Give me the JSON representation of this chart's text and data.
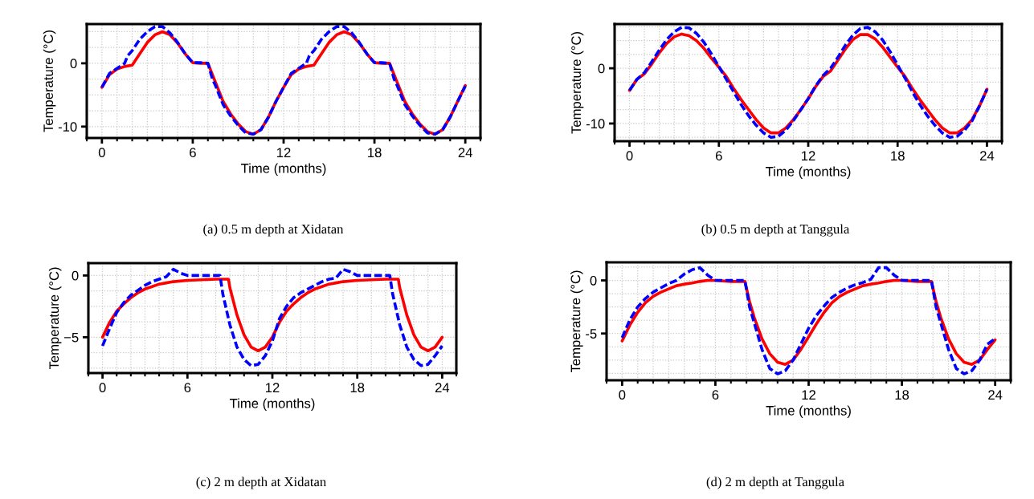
{
  "chart_data": [
    {
      "type": "line",
      "xlabel": "Time (months)",
      "ylabel": "Temperature (°C)",
      "xlim": [
        -1,
        25
      ],
      "xticks": [
        0,
        6,
        12,
        18,
        24
      ],
      "ylim": [
        -11.8,
        6.2
      ],
      "yticks": [
        -10,
        0
      ],
      "grid": true,
      "annotations": [
        "(a) 0.5 m depth at Xidatan"
      ],
      "series": [
        {
          "color": "#ff0000",
          "line_style": "solid",
          "x": [
            0,
            0.5,
            1,
            1.5,
            2,
            2.5,
            3,
            3.5,
            4,
            4.5,
            5,
            5.5,
            6,
            6.5,
            7,
            7.5,
            8,
            8.5,
            9,
            9.5,
            10,
            10.5,
            11,
            11.5,
            12,
            12.5,
            13,
            13.5,
            14,
            14.5,
            15,
            15.5,
            16,
            16.5,
            17,
            17.5,
            18,
            18.5,
            19,
            19.5,
            20,
            20.5,
            21,
            21.5,
            22,
            22.5,
            23,
            23.5,
            24
          ],
          "values": [
            -3.8,
            -1.8,
            -0.9,
            -0.5,
            -0.3,
            1.5,
            3.3,
            4.5,
            5.0,
            4.5,
            3.2,
            1.5,
            0.1,
            0,
            0,
            -3,
            -6,
            -8,
            -9.6,
            -10.8,
            -11.2,
            -10.5,
            -8.5,
            -6,
            -3.8,
            -1.8,
            -0.9,
            -0.5,
            -0.3,
            1.5,
            3.3,
            4.5,
            5.0,
            4.5,
            3.2,
            1.5,
            0.1,
            0,
            0,
            -3,
            -6,
            -8,
            -9.6,
            -10.8,
            -11.2,
            -10.5,
            -8.5,
            -6,
            -3.5
          ]
        },
        {
          "color": "#0000ff",
          "line_style": "dashed",
          "x": [
            0,
            0.5,
            1,
            1.5,
            1.7,
            2,
            2.5,
            3,
            3.5,
            4,
            4.5,
            5,
            5.5,
            6,
            6.5,
            7,
            7.3,
            7.5,
            8,
            8.5,
            9,
            9.5,
            10,
            10.5,
            11,
            11.5,
            12,
            12.5,
            13,
            13.5,
            13.7,
            14,
            14.5,
            15,
            15.5,
            16,
            16.5,
            17,
            17.5,
            18,
            18.5,
            19,
            19.3,
            19.5,
            20,
            20.5,
            21,
            21.5,
            22,
            22.5,
            23,
            23.5,
            24
          ],
          "values": [
            -3.8,
            -1.6,
            -0.8,
            0,
            1.2,
            2,
            3.8,
            5,
            5.8,
            5.8,
            4.8,
            3.3,
            1.5,
            0.1,
            0.1,
            0,
            -2.5,
            -3.5,
            -6.5,
            -8.3,
            -9.8,
            -11,
            -11.2,
            -10.5,
            -8.5,
            -6,
            -3.8,
            -1.6,
            -0.8,
            0,
            1.2,
            2,
            3.8,
            5,
            5.8,
            5.8,
            4.8,
            3.3,
            1.5,
            0.1,
            0.1,
            0,
            -2.5,
            -3.5,
            -6.5,
            -8.3,
            -9.8,
            -11,
            -11.2,
            -10.5,
            -8.5,
            -6,
            -3.6
          ]
        }
      ]
    },
    {
      "type": "line",
      "xlabel": "Time (months)",
      "ylabel": "Temperature (°C)",
      "xlim": [
        -1,
        25
      ],
      "xticks": [
        0,
        6,
        12,
        18,
        24
      ],
      "ylim": [
        -13.2,
        8.0
      ],
      "yticks": [
        -10,
        0
      ],
      "grid": true,
      "annotations": [
        "(b) 0.5 m depth at Tanggula"
      ],
      "series": [
        {
          "color": "#ff0000",
          "line_style": "solid",
          "x": [
            0,
            0.5,
            1,
            1.5,
            2,
            2.5,
            3,
            3.5,
            4,
            4.5,
            5,
            5.5,
            6,
            6.5,
            7,
            7.5,
            8,
            8.5,
            9,
            9.5,
            10,
            10.5,
            11,
            11.5,
            12,
            12.5,
            13,
            13.5,
            14,
            14.5,
            15,
            15.5,
            16,
            16.5,
            17,
            17.5,
            18,
            18.5,
            19,
            19.5,
            20,
            20.5,
            21,
            21.5,
            22,
            22.5,
            23,
            23.5,
            24
          ],
          "values": [
            -4,
            -2,
            -1,
            0.8,
            2.8,
            4.5,
            5.7,
            6.2,
            5.9,
            5,
            3.6,
            1.8,
            0.2,
            -1.5,
            -3.7,
            -5.7,
            -7.5,
            -9.3,
            -10.8,
            -11.7,
            -11.7,
            -10.8,
            -9.3,
            -7.5,
            -5.5,
            -3.3,
            -1.5,
            -0.5,
            1.5,
            3.5,
            5.2,
            6.1,
            6.1,
            5.3,
            3.8,
            2,
            0.2,
            -1.5,
            -3.7,
            -5.7,
            -7.5,
            -9.3,
            -10.8,
            -11.7,
            -11.7,
            -10.8,
            -9.3,
            -6.8,
            -3.8
          ]
        },
        {
          "color": "#0000ff",
          "line_style": "dashed",
          "x": [
            0,
            0.5,
            1,
            1.5,
            2,
            2.5,
            3,
            3.5,
            4,
            4.5,
            5,
            5.5,
            6,
            6.5,
            7,
            7.5,
            8,
            8.5,
            9,
            9.5,
            10,
            10.5,
            11,
            11.5,
            12,
            12.5,
            13,
            13.5,
            14,
            14.5,
            15,
            15.5,
            16,
            16.5,
            17,
            17.5,
            18,
            18.5,
            19,
            19.5,
            20,
            20.5,
            21,
            21.5,
            22,
            22.5,
            23,
            23.5,
            24
          ],
          "values": [
            -4,
            -2,
            -0.8,
            1.2,
            3.3,
            5.2,
            6.6,
            7.4,
            7.3,
            6.3,
            4.7,
            2.6,
            0.3,
            -2,
            -4.3,
            -6.6,
            -8.6,
            -10.3,
            -11.7,
            -12.5,
            -12.3,
            -11.2,
            -9.5,
            -7.5,
            -5.5,
            -3.2,
            -1.3,
            0,
            2,
            4.2,
            6,
            7.2,
            7.4,
            6.6,
            5.1,
            3,
            0.6,
            -1.8,
            -4.3,
            -6.6,
            -8.6,
            -10.3,
            -11.7,
            -12.5,
            -12.3,
            -11.2,
            -9.5,
            -6.8,
            -3.8
          ]
        }
      ]
    },
    {
      "type": "line",
      "xlabel": "Time (months)",
      "ylabel": "Temperature (°C)",
      "xlim": [
        -1,
        25
      ],
      "xticks": [
        0,
        6,
        12,
        18,
        24
      ],
      "ylim": [
        -7.9,
        1.0
      ],
      "yticks": [
        {
          "value": -5,
          "label": "−5"
        },
        0
      ],
      "grid": true,
      "annotations": [
        "(c) 2 m depth at Xidatan"
      ],
      "series": [
        {
          "color": "#ff0000",
          "line_style": "solid",
          "x": [
            0,
            0.5,
            1,
            1.5,
            2,
            2.5,
            3,
            3.5,
            4,
            4.5,
            5,
            6,
            7,
            8,
            8.9,
            9,
            9.5,
            10,
            10.5,
            11,
            11.5,
            12,
            12.5,
            13,
            13.5,
            14,
            14.5,
            15,
            15.5,
            16,
            16.5,
            17,
            18,
            19,
            20,
            20.9,
            21,
            21.5,
            22,
            22.5,
            23,
            23.5,
            24
          ],
          "values": [
            -5,
            -3.8,
            -2.9,
            -2.3,
            -1.8,
            -1.4,
            -1.1,
            -0.9,
            -0.7,
            -0.6,
            -0.5,
            -0.4,
            -0.35,
            -0.3,
            -0.3,
            -1,
            -3.2,
            -4.8,
            -5.8,
            -6.1,
            -5.8,
            -5,
            -3.8,
            -2.9,
            -2.3,
            -1.8,
            -1.4,
            -1.1,
            -0.9,
            -0.7,
            -0.6,
            -0.5,
            -0.4,
            -0.35,
            -0.3,
            -0.3,
            -1,
            -3.2,
            -4.8,
            -5.8,
            -6.1,
            -5.8,
            -5
          ]
        },
        {
          "color": "#0000ff",
          "line_style": "dashed",
          "x": [
            0,
            0.5,
            1,
            1.5,
            2,
            2.5,
            3,
            3.5,
            4,
            4.5,
            5,
            5.5,
            6,
            7,
            8.3,
            8.5,
            9,
            9.5,
            10,
            10.5,
            11,
            11.5,
            12,
            12.5,
            13,
            13.5,
            14,
            14.5,
            15,
            15.5,
            16,
            16.5,
            17,
            17.5,
            18,
            20.3,
            20.5,
            21,
            21.5,
            22,
            22.5,
            23,
            23.5,
            24
          ],
          "values": [
            -5.7,
            -4.3,
            -3,
            -2.2,
            -1.6,
            -1.2,
            -0.8,
            -0.5,
            -0.3,
            -0.1,
            0.5,
            0.2,
            0,
            0,
            0,
            -1.5,
            -4,
            -5.8,
            -6.8,
            -7.3,
            -7.2,
            -6.5,
            -5.3,
            -3.5,
            -2.5,
            -1.8,
            -1.4,
            -1.1,
            -0.8,
            -0.5,
            -0.3,
            -0.2,
            0.5,
            0.3,
            0,
            0,
            -1.5,
            -4,
            -5.8,
            -6.8,
            -7.3,
            -7.2,
            -6.5,
            -5.7
          ]
        }
      ]
    },
    {
      "type": "line",
      "xlabel": "Time (months)",
      "ylabel": "Temperature (°C)",
      "xlim": [
        -1,
        25
      ],
      "xticks": [
        0,
        6,
        12,
        18,
        24
      ],
      "ylim": [
        -9.4,
        1.7
      ],
      "yticks": [
        -5,
        0
      ],
      "grid": true,
      "annotations": [
        "(d) 2 m depth at Tanggula"
      ],
      "series": [
        {
          "color": "#ff0000",
          "line_style": "solid",
          "x": [
            0,
            0.5,
            1,
            1.5,
            2,
            2.5,
            3,
            3.5,
            4,
            4.5,
            5,
            5.5,
            6,
            7,
            7.9,
            8.2,
            8.5,
            9,
            9.5,
            10,
            10.5,
            11,
            11.5,
            12,
            12.5,
            13,
            13.5,
            14,
            14.5,
            15,
            15.5,
            16,
            16.5,
            17,
            17.5,
            18,
            19,
            19.9,
            20.2,
            20.5,
            21,
            21.5,
            22,
            22.5,
            23,
            23.5,
            24
          ],
          "values": [
            -5.7,
            -4.2,
            -3,
            -2.1,
            -1.5,
            -1.1,
            -0.8,
            -0.5,
            -0.35,
            -0.25,
            -0.1,
            0,
            0,
            -0.1,
            -0.1,
            -2,
            -3.5,
            -5.5,
            -6.9,
            -7.7,
            -7.9,
            -7.5,
            -6.5,
            -5.3,
            -4.1,
            -3,
            -2.1,
            -1.5,
            -1.1,
            -0.8,
            -0.5,
            -0.35,
            -0.25,
            -0.1,
            0,
            0,
            -0.1,
            -0.1,
            -2,
            -3.5,
            -5.5,
            -6.9,
            -7.7,
            -7.9,
            -7.5,
            -6.5,
            -5.6
          ]
        },
        {
          "color": "#0000ff",
          "line_style": "dashed",
          "x": [
            0,
            0.5,
            1,
            1.5,
            2,
            2.5,
            3,
            3.5,
            4,
            4.5,
            5,
            5.5,
            6,
            7,
            7.9,
            8.2,
            8.5,
            9,
            9.5,
            10,
            10.5,
            11,
            11.5,
            12,
            12.5,
            13,
            13.5,
            14,
            14.5,
            15,
            15.5,
            16,
            16.5,
            17,
            17.5,
            18,
            19,
            19.9,
            20.2,
            20.5,
            21,
            21.5,
            22,
            22.5,
            23,
            23.5,
            24
          ],
          "values": [
            -5.4,
            -3.7,
            -2.5,
            -1.7,
            -1.1,
            -0.7,
            -0.3,
            0,
            0.6,
            1,
            1.2,
            0.5,
            0,
            0,
            0,
            -2.5,
            -4,
            -6.5,
            -8.3,
            -8.8,
            -8.5,
            -7.5,
            -6,
            -4.5,
            -3.3,
            -2.4,
            -1.6,
            -1.1,
            -0.7,
            -0.4,
            -0.2,
            0.1,
            1.2,
            1.2,
            0.5,
            0,
            0,
            0,
            -2.5,
            -4,
            -6.5,
            -8.3,
            -8.8,
            -8.5,
            -7.5,
            -6,
            -5.5
          ]
        }
      ]
    }
  ]
}
